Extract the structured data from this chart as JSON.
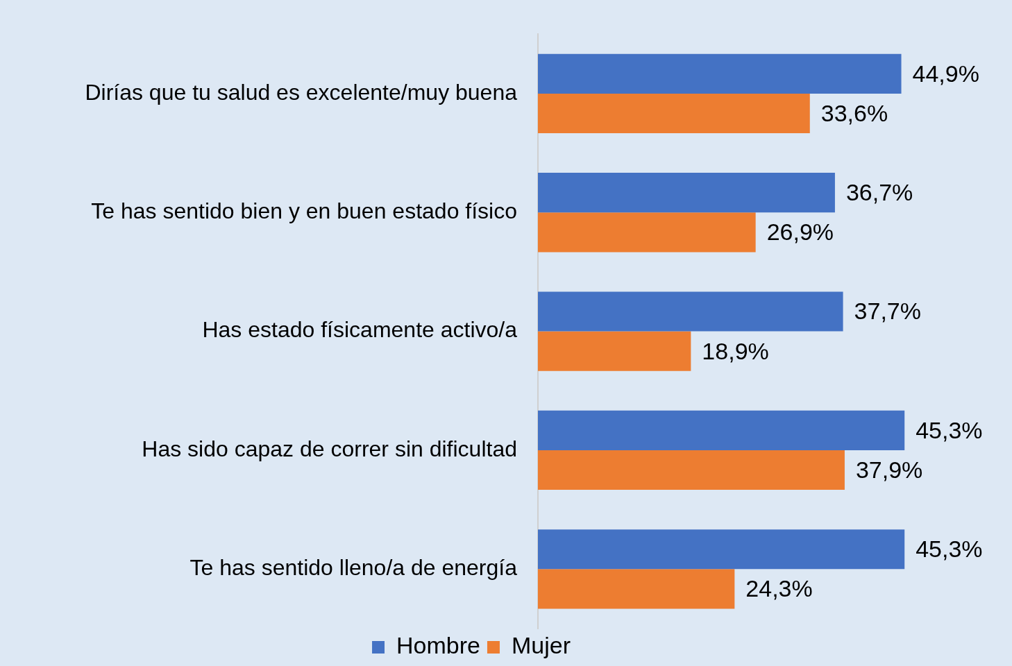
{
  "chart_data": {
    "type": "bar",
    "orientation": "horizontal",
    "categories": [
      "Dirías que tu salud es excelente/muy buena",
      "Te has sentido bien y en buen estado físico",
      "Has estado físicamente activo/a",
      "Has sido capaz de correr sin dificultad",
      "Te has sentido lleno/a de energía"
    ],
    "series": [
      {
        "name": "Hombre",
        "color": "#4472c4",
        "values": [
          44.9,
          36.7,
          37.7,
          45.3,
          45.3
        ],
        "value_labels": [
          "44,9%",
          "36,7%",
          "37,7%",
          "45,3%",
          "45,3%"
        ]
      },
      {
        "name": "Mujer",
        "color": "#ed7d31",
        "values": [
          33.6,
          26.9,
          18.9,
          37.9,
          24.3
        ],
        "value_labels": [
          "33,6%",
          "26,9%",
          "18,9%",
          "37,9%",
          "24,3%"
        ]
      }
    ],
    "grid": false,
    "legend": "bottom",
    "tick_labels": "y"
  }
}
